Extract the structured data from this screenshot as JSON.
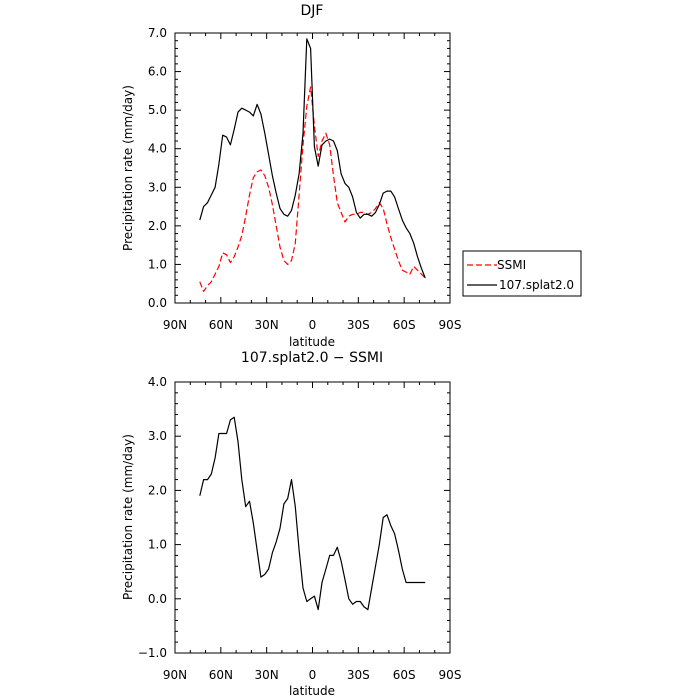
{
  "chart_data": [
    {
      "type": "line",
      "title": "DJF",
      "xlabel": "latitude",
      "ylabel": "Precipitation rate (mm/day)",
      "xlim": [
        90,
        -90
      ],
      "ylim": [
        0,
        7
      ],
      "xtick_labels": [
        "90N",
        "60N",
        "30N",
        "0",
        "30S",
        "60S",
        "90S"
      ],
      "ytick_labels": [
        "0.0",
        "1.0",
        "2.0",
        "3.0",
        "4.0",
        "5.0",
        "6.0",
        "7.0"
      ],
      "legend_position": "outside-right",
      "series": [
        {
          "name": "SSMI",
          "color": "#ff0000",
          "dash": "dashed",
          "x": [
            73.75,
            71.25,
            68.75,
            66.25,
            63.75,
            61.25,
            58.75,
            56.25,
            53.75,
            51.25,
            48.75,
            46.25,
            43.75,
            41.25,
            38.75,
            36.25,
            33.75,
            31.25,
            28.75,
            26.25,
            23.75,
            21.25,
            18.75,
            16.25,
            13.75,
            11.25,
            8.75,
            6.25,
            3.75,
            1.25,
            -1.25,
            -3.75,
            -6.25,
            -8.75,
            -11.25,
            -13.75,
            -16.25,
            -18.75,
            -21.25,
            -23.75,
            -26.25,
            -28.75,
            -31.25,
            -33.75,
            -36.25,
            -38.75,
            -41.25,
            -43.75,
            -46.25,
            -48.75,
            -51.25,
            -53.75,
            -56.25,
            -58.75,
            -61.25,
            -63.75,
            -66.25,
            -68.75,
            -71.25,
            -73.75
          ],
          "y": [
            0.55,
            0.3,
            0.45,
            0.55,
            0.75,
            0.95,
            1.3,
            1.25,
            1.05,
            1.2,
            1.45,
            1.75,
            2.25,
            2.8,
            3.25,
            3.4,
            3.45,
            3.3,
            3.0,
            2.55,
            2.0,
            1.45,
            1.1,
            1.0,
            1.1,
            1.55,
            2.8,
            4.1,
            5.1,
            5.6,
            4.6,
            3.8,
            4.2,
            4.4,
            4.1,
            3.3,
            2.6,
            2.35,
            2.1,
            2.25,
            2.3,
            2.3,
            2.35,
            2.35,
            2.3,
            2.35,
            2.45,
            2.6,
            2.45,
            2.05,
            1.7,
            1.4,
            1.1,
            0.85,
            0.8,
            0.75,
            0.95,
            0.85,
            0.75,
            0.65
          ]
        },
        {
          "name": "107.splat2.0",
          "color": "#000000",
          "dash": "solid",
          "x": [
            73.75,
            71.25,
            68.75,
            66.25,
            63.75,
            61.25,
            58.75,
            56.25,
            53.75,
            51.25,
            48.75,
            46.25,
            43.75,
            41.25,
            38.75,
            36.25,
            33.75,
            31.25,
            28.75,
            26.25,
            23.75,
            21.25,
            18.75,
            16.25,
            13.75,
            11.25,
            8.75,
            6.25,
            3.75,
            1.25,
            -1.25,
            -3.75,
            -6.25,
            -8.75,
            -11.25,
            -13.75,
            -16.25,
            -18.75,
            -21.25,
            -23.75,
            -26.25,
            -28.75,
            -31.25,
            -33.75,
            -36.25,
            -38.75,
            -41.25,
            -43.75,
            -46.25,
            -48.75,
            -51.25,
            -53.75,
            -56.25,
            -58.75,
            -61.25,
            -63.75,
            -66.25,
            -68.75,
            -71.25,
            -73.75
          ],
          "y": [
            2.15,
            2.5,
            2.6,
            2.8,
            3.0,
            3.6,
            4.35,
            4.3,
            4.1,
            4.5,
            4.95,
            5.05,
            5.0,
            4.95,
            4.85,
            5.15,
            4.9,
            4.4,
            3.85,
            3.3,
            2.85,
            2.45,
            2.3,
            2.25,
            2.4,
            2.8,
            3.35,
            4.4,
            6.85,
            6.6,
            4.05,
            3.55,
            4.1,
            4.2,
            4.25,
            4.2,
            3.95,
            3.35,
            3.1,
            3.0,
            2.75,
            2.35,
            2.2,
            2.3,
            2.3,
            2.25,
            2.35,
            2.55,
            2.85,
            2.9,
            2.9,
            2.75,
            2.45,
            2.15,
            1.95,
            1.8,
            1.55,
            1.2,
            0.9,
            0.65
          ]
        }
      ]
    },
    {
      "type": "line",
      "title": "107.splat2.0 − SSMI",
      "xlabel": "latitude",
      "ylabel": "Precipitation rate (mm/day)",
      "xlim": [
        90,
        -90
      ],
      "ylim": [
        -1,
        4
      ],
      "xtick_labels": [
        "90N",
        "60N",
        "30N",
        "0",
        "30S",
        "60S",
        "90S"
      ],
      "ytick_labels": [
        "−1.0",
        "0.0",
        "1.0",
        "2.0",
        "3.0",
        "4.0"
      ],
      "series": [
        {
          "color": "#000000",
          "dash": "solid",
          "x": [
            73.75,
            71.25,
            68.75,
            66.25,
            63.75,
            61.25,
            58.75,
            56.25,
            53.75,
            51.25,
            48.75,
            46.25,
            43.75,
            41.25,
            38.75,
            36.25,
            33.75,
            31.25,
            28.75,
            26.25,
            23.75,
            21.25,
            18.75,
            16.25,
            13.75,
            11.25,
            8.75,
            6.25,
            3.75,
            1.25,
            -1.25,
            -3.75,
            -6.25,
            -8.75,
            -11.25,
            -13.75,
            -16.25,
            -18.75,
            -21.25,
            -23.75,
            -26.25,
            -28.75,
            -31.25,
            -33.75,
            -36.25,
            -38.75,
            -41.25,
            -43.75,
            -46.25,
            -48.75,
            -51.25,
            -53.75,
            -56.25,
            -58.75,
            -61.25,
            -63.75,
            -66.25,
            -68.75,
            -71.25,
            -73.75
          ],
          "y": [
            1.9,
            2.2,
            2.2,
            2.3,
            2.6,
            3.05,
            3.05,
            3.05,
            3.3,
            3.35,
            2.9,
            2.2,
            1.7,
            1.8,
            1.4,
            0.9,
            0.4,
            0.45,
            0.55,
            0.85,
            1.05,
            1.3,
            1.75,
            1.85,
            2.2,
            1.7,
            0.9,
            0.2,
            -0.05,
            0.0,
            0.05,
            -0.2,
            0.3,
            0.55,
            0.8,
            0.8,
            0.95,
            0.7,
            0.35,
            0.0,
            -0.1,
            -0.05,
            -0.05,
            -0.15,
            -0.2,
            0.2,
            0.6,
            1.0,
            1.5,
            1.55,
            1.35,
            1.2,
            0.9,
            0.55,
            0.3,
            0.3,
            0.3,
            0.3,
            0.3,
            0.3
          ]
        }
      ]
    }
  ]
}
